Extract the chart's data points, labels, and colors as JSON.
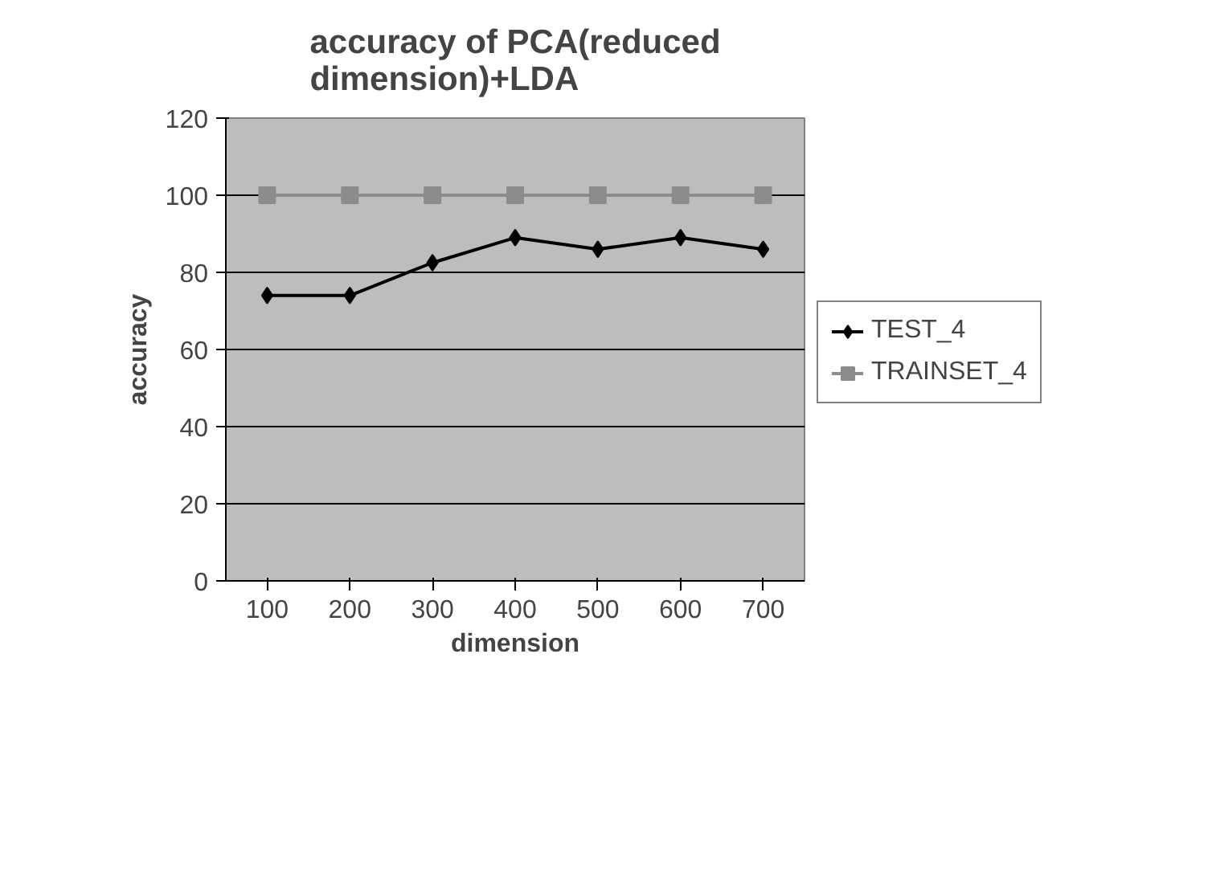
{
  "chart_data": {
    "type": "line",
    "title": "accuracy of PCA(reduced\ndimension)+LDA",
    "xlabel": "dimension",
    "ylabel": "accuracy",
    "categories": [
      "100",
      "200",
      "300",
      "400",
      "500",
      "600",
      "700"
    ],
    "series": [
      {
        "name": "TEST_4",
        "color": "#000000",
        "values": [
          74,
          74,
          82.5,
          89,
          86,
          89,
          86
        ],
        "marker": "diamond"
      },
      {
        "name": "TRAINSET_4",
        "color": "#8c8c8c",
        "values": [
          100,
          100,
          100,
          100,
          100,
          100,
          100
        ],
        "marker": "square"
      }
    ],
    "ylim": [
      0,
      120
    ],
    "yticks": [
      0,
      20,
      40,
      60,
      80,
      100,
      120
    ],
    "grid": "y",
    "legend": "right",
    "line_style": "solid"
  }
}
